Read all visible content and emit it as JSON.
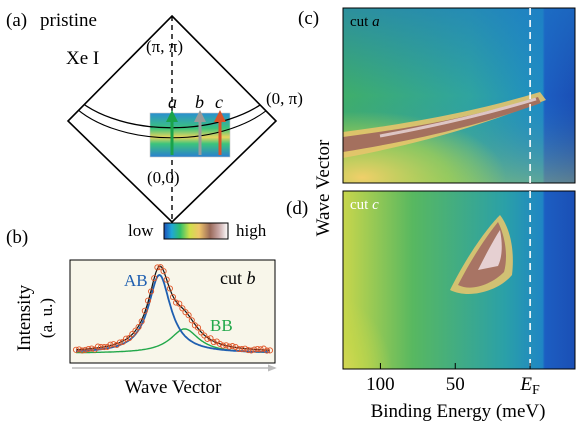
{
  "panel_a": {
    "label": "(a)",
    "title": "pristine",
    "source": "Xe I",
    "corner_top": "(π, π)",
    "corner_right": "(0, π)",
    "corner_bottom": "(0,0)",
    "cuts": [
      {
        "name": "a",
        "color": "#1aa34a"
      },
      {
        "name": "b",
        "color": "#9a9a9a"
      },
      {
        "name": "c",
        "color": "#d9532b"
      }
    ]
  },
  "colorbar": {
    "low": "low",
    "high": "high"
  },
  "panel_b": {
    "label": "(b)",
    "cut_label": "cut ",
    "cut_name": "b",
    "ylabel": "Intensity",
    "ylabel_unit": "(a. u.)",
    "xlabel": "Wave Vector",
    "peak_ab": "AB",
    "peak_bb": "BB",
    "colors": {
      "ab": "#1f5fb0",
      "bb": "#22a84a",
      "fit": "#111111",
      "data": "#e0572a"
    }
  },
  "panel_c": {
    "label": "(c)",
    "cut_label": "cut ",
    "cut_name": "a"
  },
  "panel_d": {
    "label": "(d)",
    "cut_label": "cut ",
    "cut_name": "c"
  },
  "shared_axes": {
    "ylabel": "Wave Vector",
    "xlabel": "Binding Energy (meV)",
    "ticks": [
      {
        "value": 100,
        "label": "100"
      },
      {
        "value": 50,
        "label": "50"
      },
      {
        "value": 0,
        "label": "E",
        "sub": "F"
      }
    ],
    "xlim": [
      125,
      -30
    ]
  }
}
